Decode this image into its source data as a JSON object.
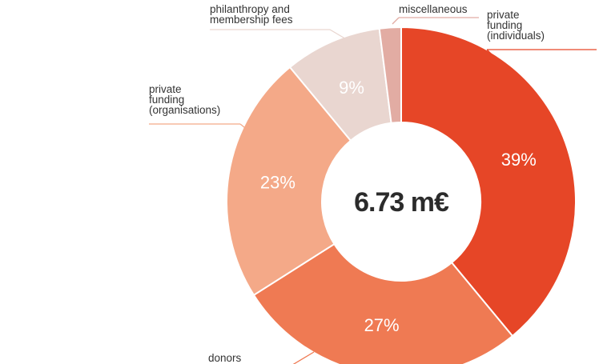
{
  "chart_data": {
    "type": "pie",
    "donut": true,
    "center_label": "6.73 m€",
    "slices": [
      {
        "name": "private funding (individuals)",
        "label_lines": [
          "private",
          "funding",
          "(individuals)"
        ],
        "value": 39,
        "value_label": "39%",
        "color": "#e64627"
      },
      {
        "name": "donors",
        "label_lines": [
          "donors"
        ],
        "value": 27,
        "value_label": "27%",
        "color": "#ef7a53"
      },
      {
        "name": "private funding (organisations)",
        "label_lines": [
          "private",
          "funding",
          "(organisations)"
        ],
        "value": 23,
        "value_label": "23%",
        "color": "#f4a988"
      },
      {
        "name": "philanthropy and membership fees",
        "label_lines": [
          "philanthropy and",
          "membership fees"
        ],
        "value": 9,
        "value_label": "9%",
        "color": "#e9d6d0"
      },
      {
        "name": "miscellaneous",
        "label_lines": [
          "miscellaneous"
        ],
        "value": 2,
        "value_label": "",
        "color": "#e2aca3"
      }
    ]
  }
}
